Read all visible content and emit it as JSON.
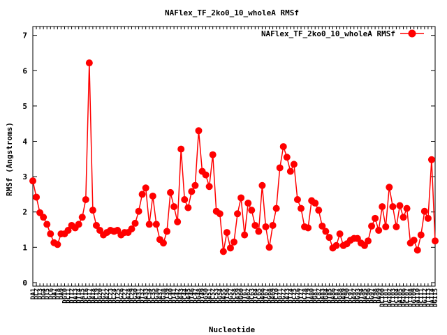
{
  "chart_data": {
    "type": "line",
    "title": "NAFlex_TF_2ko0_10_wholeA RMSf",
    "xlabel": "Nucleotide",
    "ylabel": "RMSf (Angstroms)",
    "ylim": [
      -0.1,
      7.25
    ],
    "yticks": [
      0,
      1,
      2,
      3,
      4,
      5,
      6,
      7
    ],
    "grid": false,
    "legend_position": "top-right",
    "series": [
      {
        "name": "NAFlex_TF_2ko0_10_wholeA RMSf",
        "color": "#ff0000",
        "marker": "filled-circle",
        "values": [
          2.88,
          2.42,
          1.98,
          1.85,
          1.65,
          1.38,
          1.13,
          1.08,
          1.38,
          1.38,
          1.48,
          1.62,
          1.55,
          1.65,
          1.85,
          2.35,
          6.22,
          2.05,
          1.62,
          1.48,
          1.35,
          1.42,
          1.48,
          1.45,
          1.48,
          1.35,
          1.42,
          1.42,
          1.52,
          1.68,
          2.02,
          2.5,
          2.68,
          1.65,
          2.45,
          1.65,
          1.22,
          1.12,
          1.45,
          2.55,
          2.15,
          1.72,
          3.78,
          2.35,
          2.12,
          2.58,
          2.75,
          4.3,
          3.15,
          3.05,
          2.72,
          3.62,
          2.02,
          1.95,
          0.88,
          1.42,
          0.98,
          1.15,
          1.95,
          2.4,
          1.35,
          2.25,
          2.05,
          1.62,
          1.45,
          2.75,
          1.58,
          1.0,
          1.62,
          2.1,
          3.25,
          3.85,
          3.55,
          3.15,
          3.35,
          2.35,
          2.1,
          1.58,
          1.55,
          2.32,
          2.25,
          2.05,
          1.6,
          1.45,
          1.28,
          0.98,
          1.05,
          1.38,
          1.05,
          1.1,
          1.2,
          1.25,
          1.25,
          1.12,
          1.05,
          1.18,
          1.6,
          1.82,
          1.48,
          2.15,
          1.58,
          2.7,
          2.15,
          1.58,
          2.18,
          1.85,
          2.1,
          1.12,
          1.2,
          0.92,
          1.35,
          2.02,
          1.82,
          3.48,
          1.18
        ]
      }
    ],
    "x_tick_labels": [
      "DA1",
      "DC2",
      "DT3",
      "DG4",
      "DT5",
      "DC6",
      "DA7",
      "DT8",
      "DA9",
      "DG10",
      "DC11",
      "DT12",
      "DA13",
      "DT14",
      "DA15",
      "DC16",
      "DG17",
      "DA18",
      "DC19",
      "DG20",
      "DG21",
      "DA22",
      "DC23",
      "DC24",
      "DT25",
      "DG26",
      "DC27",
      "DA28",
      "DC29",
      "DG30",
      "DA31",
      "DT32",
      "DA33",
      "DC34",
      "DC35",
      "DG36",
      "DA37",
      "DG38",
      "DT39",
      "DC40",
      "DT41",
      "DG42",
      "DA43",
      "DC44",
      "DA45",
      "DT46",
      "DC47",
      "DG48",
      "DT49",
      "DG50",
      "DA51",
      "DC52",
      "DC53",
      "DG54",
      "DA55",
      "DT56",
      "DG57",
      "DC58",
      "DA59",
      "DG60",
      "DT61",
      "DA62",
      "DC63",
      "DT64",
      "DC65",
      "DA66",
      "DT67",
      "DG68",
      "DA69",
      "DC70",
      "DG71",
      "DG72",
      "DA73",
      "DT74",
      "DC75",
      "DG76",
      "DT77",
      "DC78",
      "DT79",
      "DA80",
      "DG81",
      "DC82",
      "DA83",
      "DG84",
      "DT85",
      "DA86",
      "DC87",
      "DG88",
      "DA89",
      "DT90",
      "DC91",
      "DA92",
      "DG93",
      "DT94",
      "DA95",
      "DC96",
      "DG97",
      "DT98",
      "DA99",
      "DC100",
      "DT101",
      "DG102",
      "DT103",
      "DC104",
      "DA105",
      "DG106",
      "DC107",
      "DT108",
      "DG109",
      "DA110",
      "DC111",
      "DG112",
      "DT113",
      "DA114",
      "DG115"
    ]
  }
}
